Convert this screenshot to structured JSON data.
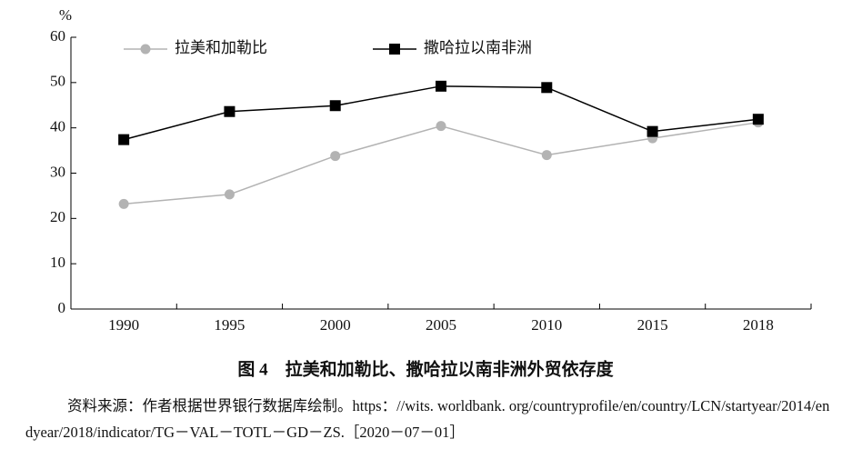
{
  "chart_data": {
    "type": "line",
    "y_label": "%",
    "categories": [
      "1990",
      "1995",
      "2000",
      "2005",
      "2010",
      "2015",
      "2018"
    ],
    "series": [
      {
        "name": "拉美和加勒比",
        "color": "#b3b3b3",
        "marker": "circle",
        "values": [
          23.2,
          25.3,
          33.8,
          40.4,
          34.0,
          37.7,
          41.2
        ]
      },
      {
        "name": "撒哈拉以南非洲",
        "color": "#000000",
        "marker": "square",
        "values": [
          37.4,
          43.6,
          44.9,
          49.2,
          48.9,
          39.2,
          41.9
        ]
      }
    ],
    "ylim": [
      0,
      60
    ],
    "yticks": [
      0,
      10,
      20,
      30,
      40,
      50,
      60
    ],
    "caption": "图 4　拉美和加勒比、撒哈拉以南非洲外贸依存度",
    "source": "资料来源：作者根据世界银行数据库绘制。https：//wits. worldbank. org/countryprofile/en/country/LCN/startyear/2014/endyear/2018/indicator/TG－VAL－TOTL－GD－ZS.［2020－07－01］"
  }
}
